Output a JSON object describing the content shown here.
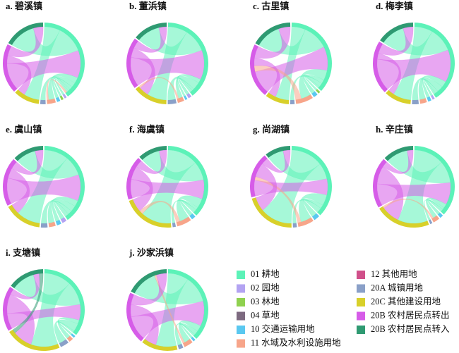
{
  "legend": [
    {
      "name": "01 耕地",
      "color": "#5cf2b8"
    },
    {
      "name": "02 园地",
      "color": "#b3a3f2"
    },
    {
      "name": "03 林地",
      "color": "#8fd14f"
    },
    {
      "name": "04 草地",
      "color": "#7d6a80"
    },
    {
      "name": "10 交通运输用地",
      "color": "#5ac8f0"
    },
    {
      "name": "11 水域及水利设施用地",
      "color": "#f7a58a"
    },
    {
      "name": "12 其他用地",
      "color": "#d0508a"
    },
    {
      "name": "20A 城镇用地",
      "color": "#8aa0c8"
    },
    {
      "name": "20C 其他建设用地",
      "color": "#d8d02a"
    },
    {
      "name": "20B 农村居民点转出",
      "color": "#d65ce8"
    },
    {
      "name": "20B 农村居民点转入",
      "color": "#2f9a72"
    }
  ],
  "chart_data": [
    {
      "type": "chord",
      "title": "a. 碧溪镇",
      "links": [
        {
          "source": 0,
          "target": 8,
          "value": 8
        },
        {
          "source": 0,
          "target": 10,
          "value": 14
        },
        {
          "source": 9,
          "target": 0,
          "value": 14
        },
        {
          "source": 0,
          "target": 5,
          "value": 3
        },
        {
          "source": 0,
          "target": 7,
          "value": 2.5
        },
        {
          "source": 0,
          "target": 4,
          "value": 1.5
        },
        {
          "source": 0,
          "target": 1,
          "value": 1
        },
        {
          "source": 0,
          "target": 2,
          "value": 1
        },
        {
          "source": 9,
          "target": 8,
          "value": 4
        },
        {
          "source": 9,
          "target": 10,
          "value": 5
        },
        {
          "source": 5,
          "target": 0,
          "value": 1
        }
      ]
    },
    {
      "type": "chord",
      "title": "b. 董浜镇",
      "links": [
        {
          "source": 0,
          "target": 8,
          "value": 10
        },
        {
          "source": 0,
          "target": 10,
          "value": 12
        },
        {
          "source": 9,
          "target": 0,
          "value": 15
        },
        {
          "source": 0,
          "target": 5,
          "value": 2
        },
        {
          "source": 0,
          "target": 7,
          "value": 4
        },
        {
          "source": 0,
          "target": 4,
          "value": 1
        },
        {
          "source": 0,
          "target": 1,
          "value": 1.5
        },
        {
          "source": 9,
          "target": 8,
          "value": 5
        },
        {
          "source": 9,
          "target": 10,
          "value": 4
        },
        {
          "source": 5,
          "target": 8,
          "value": 1
        }
      ]
    },
    {
      "type": "chord",
      "title": "c. 古里镇",
      "links": [
        {
          "source": 0,
          "target": 8,
          "value": 7
        },
        {
          "source": 0,
          "target": 10,
          "value": 13
        },
        {
          "source": 9,
          "target": 0,
          "value": 12
        },
        {
          "source": 0,
          "target": 5,
          "value": 5
        },
        {
          "source": 0,
          "target": 7,
          "value": 2
        },
        {
          "source": 0,
          "target": 4,
          "value": 2
        },
        {
          "source": 5,
          "target": 9,
          "value": 3
        },
        {
          "source": 9,
          "target": 8,
          "value": 4
        },
        {
          "source": 9,
          "target": 10,
          "value": 6
        },
        {
          "source": 0,
          "target": 2,
          "value": 1
        }
      ]
    },
    {
      "type": "chord",
      "title": "d. 梅李镇",
      "links": [
        {
          "source": 0,
          "target": 8,
          "value": 9
        },
        {
          "source": 0,
          "target": 10,
          "value": 12
        },
        {
          "source": 9,
          "target": 0,
          "value": 16
        },
        {
          "source": 0,
          "target": 5,
          "value": 3
        },
        {
          "source": 0,
          "target": 7,
          "value": 3
        },
        {
          "source": 0,
          "target": 4,
          "value": 1.5
        },
        {
          "source": 0,
          "target": 1,
          "value": 1
        },
        {
          "source": 9,
          "target": 8,
          "value": 3
        },
        {
          "source": 9,
          "target": 10,
          "value": 5
        }
      ]
    },
    {
      "type": "chord",
      "title": "e. 虞山镇",
      "links": [
        {
          "source": 0,
          "target": 8,
          "value": 12
        },
        {
          "source": 0,
          "target": 10,
          "value": 10
        },
        {
          "source": 9,
          "target": 0,
          "value": 13
        },
        {
          "source": 0,
          "target": 5,
          "value": 3
        },
        {
          "source": 0,
          "target": 7,
          "value": 3
        },
        {
          "source": 0,
          "target": 4,
          "value": 2
        },
        {
          "source": 0,
          "target": 1,
          "value": 2
        },
        {
          "source": 9,
          "target": 8,
          "value": 5
        },
        {
          "source": 9,
          "target": 10,
          "value": 4
        }
      ]
    },
    {
      "type": "chord",
      "title": "f. 海虞镇",
      "links": [
        {
          "source": 0,
          "target": 8,
          "value": 16
        },
        {
          "source": 0,
          "target": 10,
          "value": 10
        },
        {
          "source": 9,
          "target": 0,
          "value": 10
        },
        {
          "source": 0,
          "target": 5,
          "value": 5
        },
        {
          "source": 0,
          "target": 7,
          "value": 1.5
        },
        {
          "source": 0,
          "target": 4,
          "value": 2
        },
        {
          "source": 5,
          "target": 8,
          "value": 2
        },
        {
          "source": 9,
          "target": 8,
          "value": 7
        },
        {
          "source": 9,
          "target": 10,
          "value": 4
        }
      ]
    },
    {
      "type": "chord",
      "title": "g. 尚湖镇",
      "links": [
        {
          "source": 0,
          "target": 8,
          "value": 18
        },
        {
          "source": 0,
          "target": 10,
          "value": 9
        },
        {
          "source": 9,
          "target": 0,
          "value": 9
        },
        {
          "source": 0,
          "target": 5,
          "value": 6
        },
        {
          "source": 0,
          "target": 7,
          "value": 2
        },
        {
          "source": 0,
          "target": 4,
          "value": 3
        },
        {
          "source": 5,
          "target": 9,
          "value": 2
        },
        {
          "source": 9,
          "target": 8,
          "value": 8
        },
        {
          "source": 9,
          "target": 10,
          "value": 4
        }
      ]
    },
    {
      "type": "chord",
      "title": "h. 辛庄镇",
      "links": [
        {
          "source": 0,
          "target": 8,
          "value": 15
        },
        {
          "source": 0,
          "target": 10,
          "value": 11
        },
        {
          "source": 9,
          "target": 0,
          "value": 11
        },
        {
          "source": 0,
          "target": 5,
          "value": 2
        },
        {
          "source": 0,
          "target": 7,
          "value": 1
        },
        {
          "source": 0,
          "target": 4,
          "value": 1.5
        },
        {
          "source": 9,
          "target": 8,
          "value": 9
        },
        {
          "source": 9,
          "target": 10,
          "value": 3
        },
        {
          "source": 5,
          "target": 8,
          "value": 1
        }
      ]
    },
    {
      "type": "chord",
      "title": "i. 支塘镇",
      "links": [
        {
          "source": 0,
          "target": 8,
          "value": 14
        },
        {
          "source": 0,
          "target": 10,
          "value": 12
        },
        {
          "source": 9,
          "target": 0,
          "value": 8
        },
        {
          "source": 0,
          "target": 5,
          "value": 2
        },
        {
          "source": 0,
          "target": 7,
          "value": 4
        },
        {
          "source": 0,
          "target": 4,
          "value": 1
        },
        {
          "source": 9,
          "target": 8,
          "value": 10
        },
        {
          "source": 9,
          "target": 10,
          "value": 3
        },
        {
          "source": 10,
          "target": 8,
          "value": 2
        }
      ]
    },
    {
      "type": "chord",
      "title": "j. 沙家浜镇",
      "links": [
        {
          "source": 0,
          "target": 8,
          "value": 10
        },
        {
          "source": 0,
          "target": 10,
          "value": 13
        },
        {
          "source": 9,
          "target": 0,
          "value": 12
        },
        {
          "source": 0,
          "target": 5,
          "value": 3
        },
        {
          "source": 0,
          "target": 7,
          "value": 2
        },
        {
          "source": 0,
          "target": 4,
          "value": 1
        },
        {
          "source": 5,
          "target": 10,
          "value": 1
        },
        {
          "source": 9,
          "target": 8,
          "value": 6
        },
        {
          "source": 9,
          "target": 10,
          "value": 5
        }
      ]
    }
  ]
}
